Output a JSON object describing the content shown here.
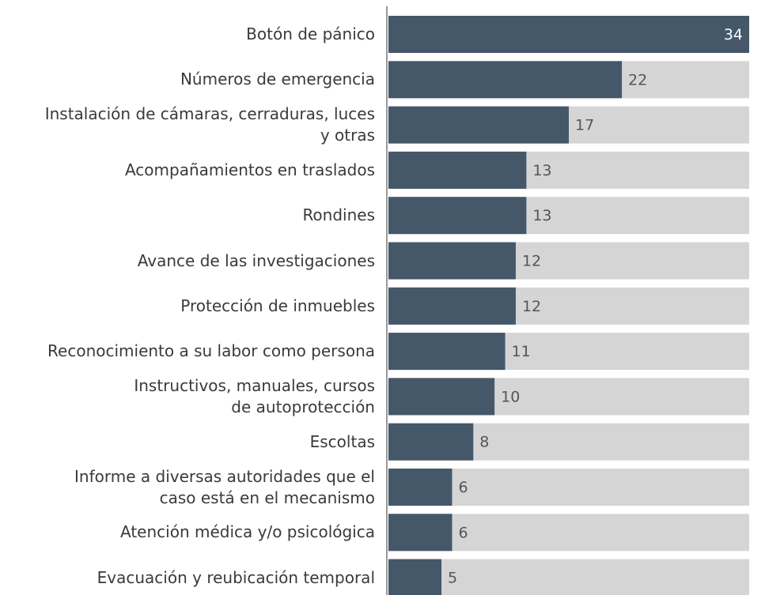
{
  "chart_data": {
    "type": "barh",
    "categories": [
      "Botón de pánico",
      "Números de emergencia",
      "Instalación de cámaras, cerraduras, luces\ny otras",
      "Acompañamientos en traslados",
      "Rondines",
      "Avance de las investigaciones",
      "Protección de inmuebles",
      "Reconocimiento a su labor como persona",
      "Instructivos, manuales, cursos\nde autoprotección",
      "Escoltas",
      "Informe a diversas autoridades que el\ncaso está en el mecanismo",
      "Atención médica y/o psicológica",
      "Evacuación y reubicación temporal"
    ],
    "values": [
      34,
      22,
      17,
      13,
      13,
      12,
      12,
      11,
      10,
      8,
      6,
      6,
      5
    ],
    "color": "#44586a",
    "track_color": "#d5d5d5",
    "xlim": [
      0,
      34
    ]
  }
}
